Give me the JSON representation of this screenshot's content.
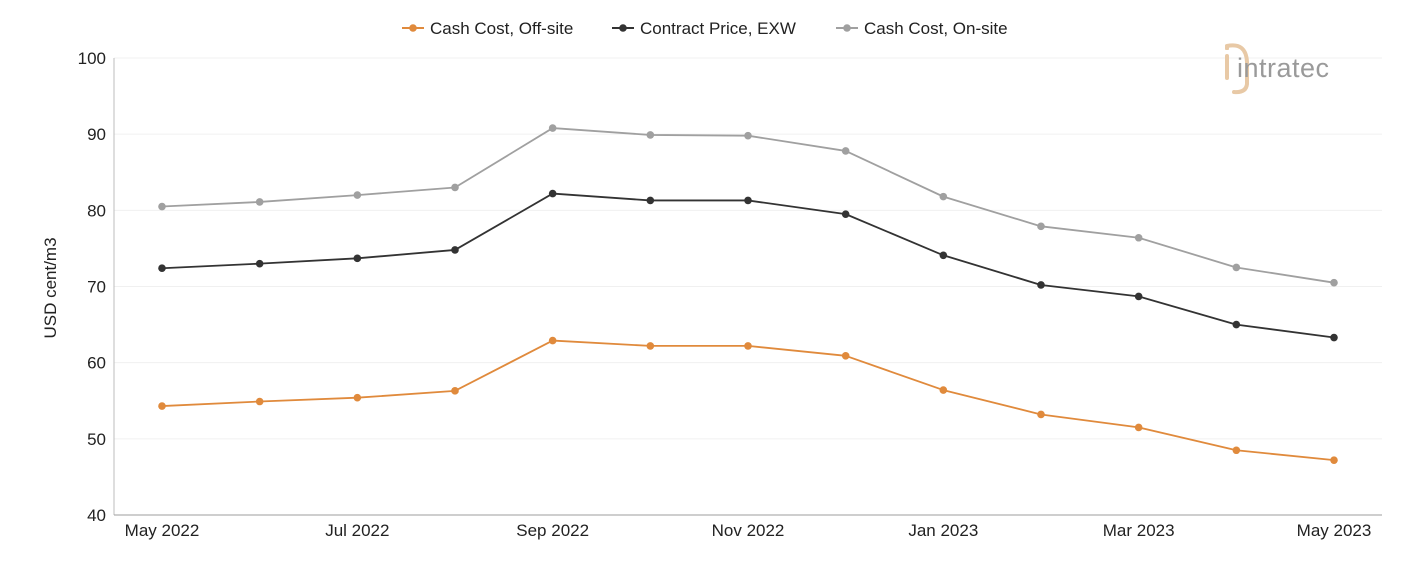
{
  "chart_data": {
    "type": "line",
    "title": "",
    "xlabel": "",
    "ylabel": "USD cent/m3",
    "ylim": [
      40,
      100
    ],
    "yticks": [
      40,
      50,
      60,
      70,
      80,
      90,
      100
    ],
    "grid": "horizontal",
    "legend_position": "top-center",
    "categories": [
      "May 2022",
      "Jun 2022",
      "Jul 2022",
      "Aug 2022",
      "Sep 2022",
      "Oct 2022",
      "Nov 2022",
      "Dec 2022",
      "Jan 2023",
      "Feb 2023",
      "Mar 2023",
      "Apr 2023",
      "May 2023"
    ],
    "tick_labels": [
      {
        "index": 0,
        "label": "May 2022"
      },
      {
        "index": 2,
        "label": "Jul 2022"
      },
      {
        "index": 4,
        "label": "Sep 2022"
      },
      {
        "index": 6,
        "label": "Nov 2022"
      },
      {
        "index": 8,
        "label": "Jan 2023"
      },
      {
        "index": 10,
        "label": "Mar 2023"
      },
      {
        "index": 12,
        "label": "May 2023"
      }
    ],
    "series": [
      {
        "name": "Cash Cost, Off-site",
        "color": "#E08A3C",
        "values": [
          54.3,
          54.9,
          55.4,
          56.3,
          62.9,
          62.2,
          62.2,
          60.9,
          56.4,
          53.2,
          51.5,
          48.5,
          47.2
        ]
      },
      {
        "name": "Contract Price, EXW",
        "color": "#333333",
        "values": [
          72.4,
          73.0,
          73.7,
          74.8,
          82.2,
          81.3,
          81.3,
          79.5,
          74.1,
          70.2,
          68.7,
          65.0,
          63.3
        ]
      },
      {
        "name": "Cash Cost, On-site",
        "color": "#A0A0A0",
        "values": [
          80.5,
          81.1,
          82.0,
          83.0,
          90.8,
          89.9,
          89.8,
          87.8,
          81.8,
          77.9,
          76.4,
          72.5,
          70.5
        ]
      }
    ]
  },
  "logo": {
    "text": "intratec",
    "color": "#9a9a9a",
    "accent_color": "#E8C9A6"
  }
}
